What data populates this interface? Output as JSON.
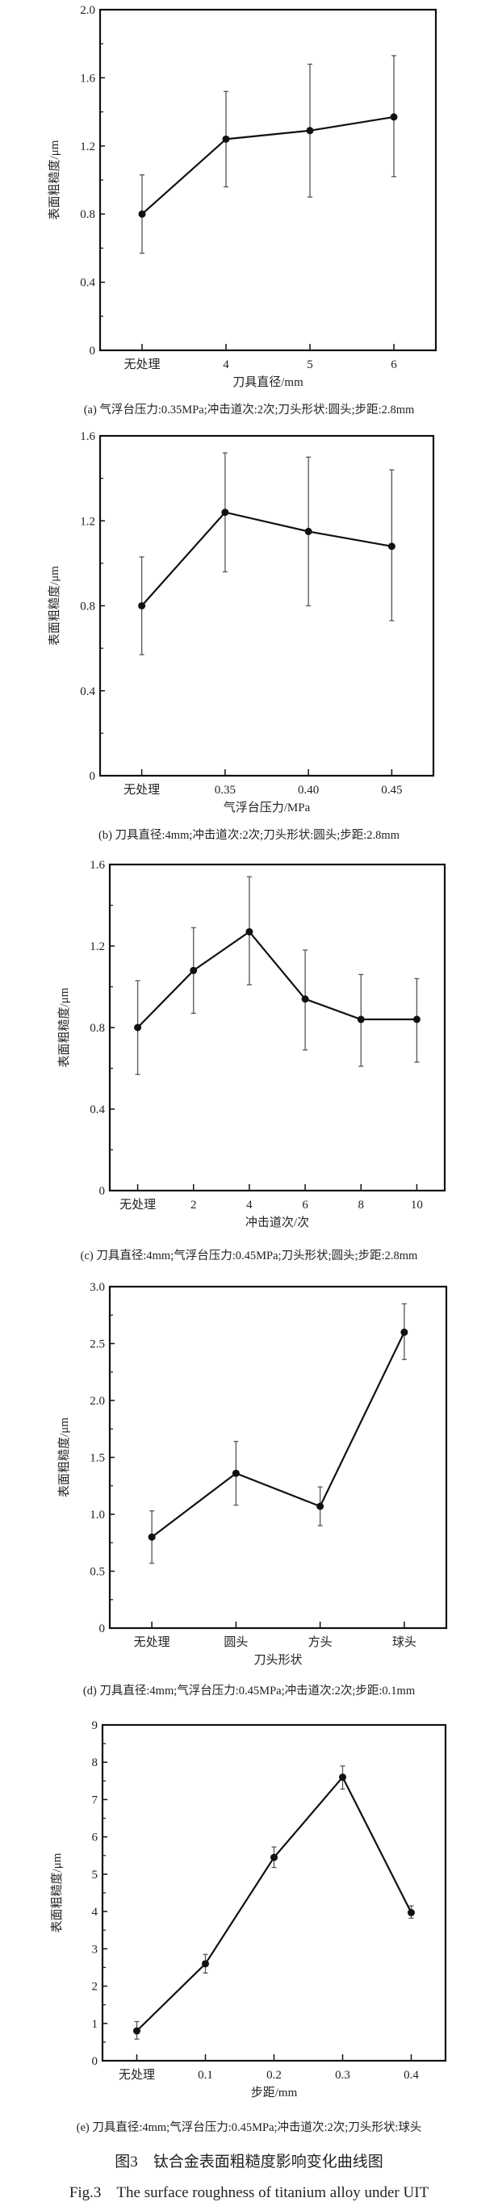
{
  "figure": {
    "title_cn": "图3　钛合金表面粗糙度影响变化曲线图",
    "title_en": "Fig.3　The surface roughness of titanium alloy under UIT"
  },
  "colors": {
    "line": "#111111",
    "error_bar": "#555555",
    "axes": "#111111"
  },
  "chart_data": [
    {
      "type": "line",
      "caption": "(a) 气浮台压力:0.35MPa;冲击道次:2次;刀头形状:圆头;步距:2.8mm",
      "xlabel": "刀具直径/mm",
      "ylabel": "表面粗糙度/μm",
      "categories": [
        "无处理",
        "4",
        "5",
        "6"
      ],
      "values": [
        0.8,
        1.24,
        1.29,
        1.37
      ],
      "error_low": [
        0.57,
        0.96,
        0.9,
        1.02
      ],
      "error_high": [
        1.03,
        1.52,
        1.68,
        1.73
      ],
      "ylim": [
        0,
        2.0
      ],
      "yticks": [
        "0",
        "0.4",
        "0.8",
        "1.2",
        "1.6",
        "2.0"
      ],
      "grid": false
    },
    {
      "type": "line",
      "caption": "(b) 刀具直径:4mm;冲击道次:2次;刀头形状:圆头;步距:2.8mm",
      "xlabel": "气浮台压力/MPa",
      "ylabel": "表面粗糙度/μm",
      "categories": [
        "无处理",
        "0.35",
        "0.40",
        "0.45"
      ],
      "values": [
        0.8,
        1.24,
        1.15,
        1.08
      ],
      "error_low": [
        0.57,
        0.96,
        0.8,
        0.73
      ],
      "error_high": [
        1.03,
        1.52,
        1.5,
        1.44
      ],
      "ylim": [
        0,
        1.6
      ],
      "yticks": [
        "0",
        "0.4",
        "0.8",
        "1.2",
        "1.6"
      ],
      "grid": false
    },
    {
      "type": "line",
      "caption": "(c) 刀具直径:4mm;气浮台压力:0.45MPa;刀头形状;圆头;步距:2.8mm",
      "xlabel": "冲击道次/次",
      "ylabel": "表面粗糙度/μm",
      "categories": [
        "无处理",
        "2",
        "4",
        "6",
        "8",
        "10"
      ],
      "values": [
        0.8,
        1.08,
        1.27,
        0.94,
        0.84,
        0.84
      ],
      "error_low": [
        0.57,
        0.87,
        1.01,
        0.69,
        0.61,
        0.63
      ],
      "error_high": [
        1.03,
        1.29,
        1.54,
        1.18,
        1.06,
        1.04
      ],
      "ylim": [
        0,
        1.6
      ],
      "yticks": [
        "0",
        "0.4",
        "0.8",
        "1.2",
        "1.6"
      ],
      "grid": false
    },
    {
      "type": "line",
      "caption": "(d) 刀具直径:4mm;气浮台压力:0.45MPa;冲击道次:2次;步距:0.1mm",
      "xlabel": "刀头形状",
      "ylabel": "表面粗糙度/μm",
      "categories": [
        "无处理",
        "圆头",
        "方头",
        "球头"
      ],
      "values": [
        0.8,
        1.36,
        1.07,
        2.6
      ],
      "error_low": [
        0.57,
        1.08,
        0.9,
        2.36
      ],
      "error_high": [
        1.03,
        1.64,
        1.24,
        2.85
      ],
      "ylim": [
        0,
        3.0
      ],
      "yticks": [
        "0",
        "0.5",
        "1.0",
        "1.5",
        "2.0",
        "2.5",
        "3.0"
      ],
      "grid": false
    },
    {
      "type": "line",
      "caption": "(e) 刀具直径:4mm;气浮台压力:0.45MPa;冲击道次:2次;刀头形状:球头",
      "xlabel": "步距/mm",
      "ylabel": "表面粗糙度/μm",
      "categories": [
        "无处理",
        "0.1",
        "0.2",
        "0.3",
        "0.4"
      ],
      "values": [
        0.8,
        2.6,
        5.45,
        7.6,
        3.97
      ],
      "error_low": [
        0.58,
        2.35,
        5.18,
        7.28,
        3.82
      ],
      "error_high": [
        1.05,
        2.85,
        5.73,
        7.9,
        4.15
      ],
      "ylim": [
        0,
        9
      ],
      "yticks": [
        "0",
        "1",
        "2",
        "3",
        "4",
        "5",
        "6",
        "7",
        "8",
        "9"
      ],
      "grid": false
    }
  ]
}
